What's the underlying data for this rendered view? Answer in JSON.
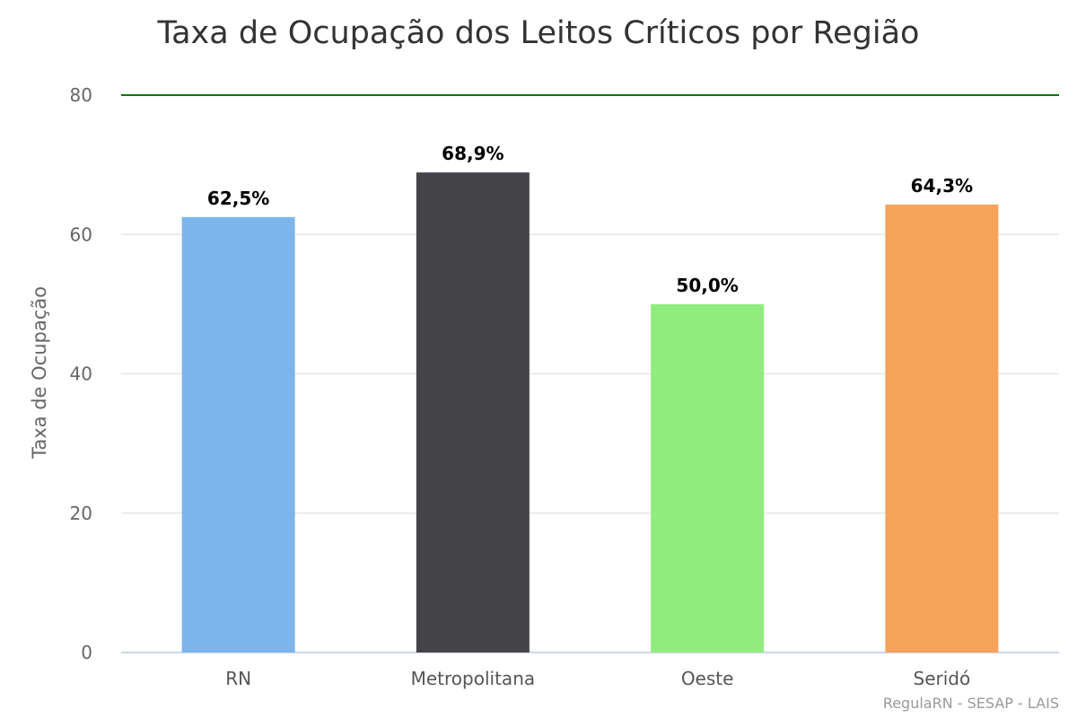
{
  "chart_data": {
    "type": "bar",
    "title": "Taxa de Ocupação dos Leitos Críticos por Região",
    "xlabel": "",
    "ylabel": "Taxa de Ocupação",
    "ylim": [
      0,
      80
    ],
    "yticks": [
      "0",
      "20",
      "40",
      "60",
      "80"
    ],
    "categories": [
      "RN",
      "Metropolitana",
      "Oeste",
      "Seridó"
    ],
    "values": [
      62.5,
      68.9,
      50.0,
      64.3
    ],
    "data_labels": [
      "62,5%",
      "68,9%",
      "50,0%",
      "64,3%"
    ],
    "colors": [
      "#7cb5ec",
      "#434348",
      "#90ed7d",
      "#f7a35c"
    ],
    "reference_line": {
      "value": 80,
      "color": "#007700"
    },
    "grid": true,
    "legend": "none",
    "credits": "RegulaRN - SESAP - LAIS"
  }
}
